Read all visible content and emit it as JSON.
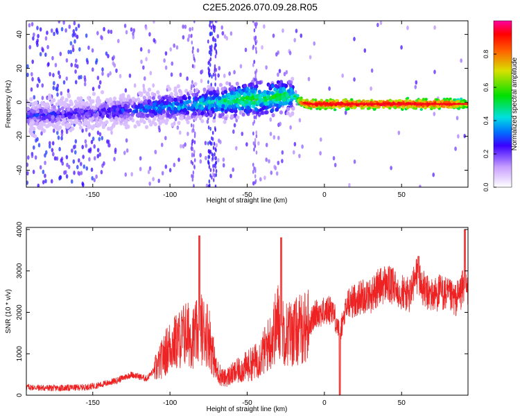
{
  "title": "C2E5.2026.070.09.28.R05",
  "chart_data": [
    {
      "type": "heatmap",
      "xlabel": "Height of straight line (km)",
      "ylabel": "Frequency (Hz)",
      "xlim": [
        -193,
        93
      ],
      "ylim": [
        -50,
        48
      ],
      "xticks": [
        -150,
        -100,
        -50,
        0,
        50
      ],
      "yticks": [
        -40,
        -20,
        0,
        20,
        40
      ],
      "colorbar": {
        "label": "Normalized spectral amplitude",
        "range": [
          0,
          1
        ],
        "ticks": [
          0.0,
          0.2,
          0.4,
          0.6,
          0.8
        ]
      },
      "ridge": {
        "x": [
          -193,
          -170,
          -150,
          -130,
          -110,
          -90,
          -70,
          -60,
          -50,
          -40,
          -30,
          -20,
          -15,
          -10,
          0,
          10,
          20,
          40,
          60,
          80,
          93
        ],
        "frequency": [
          -8,
          -7,
          -6,
          -5,
          -3,
          -2,
          0,
          1,
          2,
          2,
          3,
          4,
          0,
          -1,
          -1,
          -1,
          -1,
          -1,
          -1,
          -1,
          -1
        ],
        "amplitude": [
          0.28,
          0.25,
          0.25,
          0.3,
          0.35,
          0.4,
          0.45,
          0.5,
          0.55,
          0.5,
          0.55,
          0.45,
          0.9,
          0.95,
          0.95,
          0.95,
          0.95,
          0.95,
          0.95,
          0.95,
          0.75
        ]
      }
    },
    {
      "type": "line",
      "xlabel": "Height of straight line (km)",
      "ylabel": "SNR (10 * v/v)",
      "xlim": [
        -193,
        93
      ],
      "ylim": [
        0,
        4050
      ],
      "xticks": [
        -150,
        -100,
        -50,
        0,
        50
      ],
      "yticks": [
        0,
        1000,
        2000,
        3000,
        4000
      ],
      "color": "#ee2222",
      "x": [
        -193,
        -185,
        -175,
        -165,
        -155,
        -145,
        -135,
        -125,
        -115,
        -108,
        -100,
        -95,
        -90,
        -85,
        -80,
        -75,
        -70,
        -65,
        -60,
        -55,
        -50,
        -45,
        -40,
        -35,
        -30,
        -25,
        -20,
        -15,
        -10,
        -5,
        0,
        5,
        10,
        15,
        20,
        25,
        30,
        35,
        40,
        45,
        50,
        55,
        60,
        65,
        70,
        75,
        80,
        85,
        90,
        93
      ],
      "y": [
        200,
        180,
        170,
        180,
        190,
        250,
        350,
        500,
        400,
        700,
        1200,
        1300,
        1500,
        1400,
        1600,
        1500,
        600,
        400,
        500,
        600,
        700,
        800,
        1000,
        1300,
        1800,
        1500,
        1500,
        1600,
        1700,
        2000,
        2000,
        2100,
        1500,
        2200,
        2300,
        2400,
        2400,
        2600,
        2700,
        2600,
        2500,
        2400,
        2900,
        2500,
        2400,
        2500,
        2400,
        2300,
        2600,
        2500
      ],
      "peaks": [
        {
          "x": -81,
          "y": 3850
        },
        {
          "x": -28,
          "y": 3800
        },
        {
          "x": 10,
          "y": 0
        },
        {
          "x": 61,
          "y": 3350
        },
        {
          "x": 91,
          "y": 4000
        }
      ]
    }
  ]
}
